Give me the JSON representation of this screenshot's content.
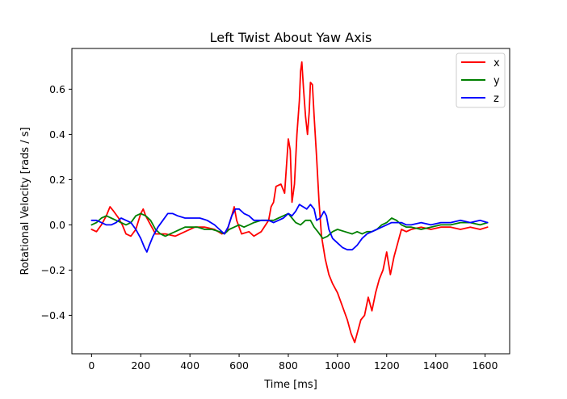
{
  "chart_data": {
    "type": "line",
    "title": "Left Twist About Yaw Axis",
    "xlabel": "Time [ms]",
    "ylabel": "Rotational Velocity [rads / s]",
    "xlim": [
      -80,
      1700
    ],
    "ylim": [
      -0.57,
      0.78
    ],
    "xticks": [
      0,
      200,
      400,
      600,
      800,
      1000,
      1200,
      1400,
      1600
    ],
    "yticks": [
      -0.4,
      -0.2,
      0.0,
      0.2,
      0.4,
      0.6
    ],
    "ytick_labels": [
      "−0.4",
      "−0.2",
      "0.0",
      "0.2",
      "0.4",
      "0.6"
    ],
    "grid": false,
    "legend_position": "top-right",
    "series": [
      {
        "name": "x",
        "color": "#ff0000",
        "points": [
          [
            0,
            -0.02
          ],
          [
            20,
            -0.03
          ],
          [
            40,
            0.0
          ],
          [
            60,
            0.04
          ],
          [
            75,
            0.08
          ],
          [
            90,
            0.06
          ],
          [
            110,
            0.03
          ],
          [
            125,
            0.0
          ],
          [
            140,
            -0.04
          ],
          [
            160,
            -0.05
          ],
          [
            180,
            -0.02
          ],
          [
            200,
            0.05
          ],
          [
            210,
            0.07
          ],
          [
            220,
            0.04
          ],
          [
            240,
            0.0
          ],
          [
            260,
            -0.04
          ],
          [
            300,
            -0.04
          ],
          [
            340,
            -0.05
          ],
          [
            380,
            -0.03
          ],
          [
            420,
            -0.01
          ],
          [
            460,
            -0.01
          ],
          [
            500,
            -0.02
          ],
          [
            530,
            -0.04
          ],
          [
            550,
            -0.03
          ],
          [
            570,
            0.04
          ],
          [
            580,
            0.08
          ],
          [
            590,
            0.02
          ],
          [
            610,
            -0.04
          ],
          [
            640,
            -0.03
          ],
          [
            660,
            -0.05
          ],
          [
            690,
            -0.03
          ],
          [
            720,
            0.02
          ],
          [
            730,
            0.08
          ],
          [
            740,
            0.1
          ],
          [
            750,
            0.17
          ],
          [
            770,
            0.18
          ],
          [
            785,
            0.14
          ],
          [
            795,
            0.3
          ],
          [
            800,
            0.38
          ],
          [
            808,
            0.33
          ],
          [
            815,
            0.1
          ],
          [
            825,
            0.18
          ],
          [
            835,
            0.4
          ],
          [
            845,
            0.55
          ],
          [
            850,
            0.68
          ],
          [
            855,
            0.72
          ],
          [
            862,
            0.6
          ],
          [
            870,
            0.48
          ],
          [
            878,
            0.4
          ],
          [
            885,
            0.5
          ],
          [
            890,
            0.63
          ],
          [
            898,
            0.62
          ],
          [
            905,
            0.48
          ],
          [
            915,
            0.3
          ],
          [
            925,
            0.1
          ],
          [
            935,
            -0.05
          ],
          [
            950,
            -0.15
          ],
          [
            965,
            -0.22
          ],
          [
            980,
            -0.26
          ],
          [
            1000,
            -0.3
          ],
          [
            1020,
            -0.36
          ],
          [
            1040,
            -0.42
          ],
          [
            1055,
            -0.48
          ],
          [
            1070,
            -0.52
          ],
          [
            1080,
            -0.48
          ],
          [
            1095,
            -0.42
          ],
          [
            1110,
            -0.4
          ],
          [
            1125,
            -0.32
          ],
          [
            1140,
            -0.38
          ],
          [
            1155,
            -0.3
          ],
          [
            1170,
            -0.24
          ],
          [
            1185,
            -0.2
          ],
          [
            1200,
            -0.12
          ],
          [
            1215,
            -0.22
          ],
          [
            1230,
            -0.14
          ],
          [
            1245,
            -0.08
          ],
          [
            1260,
            -0.02
          ],
          [
            1280,
            -0.03
          ],
          [
            1300,
            -0.02
          ],
          [
            1340,
            -0.01
          ],
          [
            1380,
            -0.02
          ],
          [
            1420,
            -0.01
          ],
          [
            1460,
            -0.01
          ],
          [
            1500,
            -0.02
          ],
          [
            1540,
            -0.01
          ],
          [
            1580,
            -0.02
          ],
          [
            1610,
            -0.01
          ]
        ]
      },
      {
        "name": "y",
        "color": "#008000",
        "points": [
          [
            0,
            0.0
          ],
          [
            20,
            0.01
          ],
          [
            40,
            0.03
          ],
          [
            60,
            0.04
          ],
          [
            80,
            0.03
          ],
          [
            100,
            0.02
          ],
          [
            120,
            0.01
          ],
          [
            140,
            0.0
          ],
          [
            160,
            0.01
          ],
          [
            180,
            0.04
          ],
          [
            200,
            0.05
          ],
          [
            220,
            0.04
          ],
          [
            240,
            0.02
          ],
          [
            260,
            -0.02
          ],
          [
            280,
            -0.04
          ],
          [
            300,
            -0.05
          ],
          [
            320,
            -0.04
          ],
          [
            340,
            -0.03
          ],
          [
            360,
            -0.02
          ],
          [
            380,
            -0.01
          ],
          [
            400,
            -0.01
          ],
          [
            430,
            -0.01
          ],
          [
            460,
            -0.02
          ],
          [
            490,
            -0.02
          ],
          [
            520,
            -0.03
          ],
          [
            540,
            -0.04
          ],
          [
            560,
            -0.02
          ],
          [
            580,
            -0.01
          ],
          [
            600,
            0.0
          ],
          [
            620,
            -0.01
          ],
          [
            640,
            0.0
          ],
          [
            660,
            0.01
          ],
          [
            690,
            0.02
          ],
          [
            720,
            0.02
          ],
          [
            740,
            0.02
          ],
          [
            760,
            0.03
          ],
          [
            780,
            0.04
          ],
          [
            800,
            0.05
          ],
          [
            815,
            0.03
          ],
          [
            830,
            0.01
          ],
          [
            850,
            0.0
          ],
          [
            870,
            0.02
          ],
          [
            890,
            0.02
          ],
          [
            905,
            -0.01
          ],
          [
            920,
            -0.03
          ],
          [
            940,
            -0.06
          ],
          [
            960,
            -0.05
          ],
          [
            980,
            -0.03
          ],
          [
            1000,
            -0.02
          ],
          [
            1030,
            -0.03
          ],
          [
            1060,
            -0.04
          ],
          [
            1080,
            -0.03
          ],
          [
            1100,
            -0.04
          ],
          [
            1120,
            -0.03
          ],
          [
            1140,
            -0.03
          ],
          [
            1160,
            -0.02
          ],
          [
            1180,
            0.0
          ],
          [
            1200,
            0.01
          ],
          [
            1220,
            0.03
          ],
          [
            1240,
            0.02
          ],
          [
            1260,
            0.0
          ],
          [
            1280,
            -0.01
          ],
          [
            1300,
            -0.01
          ],
          [
            1340,
            -0.02
          ],
          [
            1380,
            -0.01
          ],
          [
            1420,
            0.0
          ],
          [
            1460,
            0.0
          ],
          [
            1500,
            0.01
          ],
          [
            1540,
            0.01
          ],
          [
            1580,
            0.0
          ],
          [
            1610,
            0.01
          ]
        ]
      },
      {
        "name": "z",
        "color": "#0000ff",
        "points": [
          [
            0,
            0.02
          ],
          [
            20,
            0.02
          ],
          [
            40,
            0.01
          ],
          [
            60,
            0.0
          ],
          [
            80,
            0.0
          ],
          [
            100,
            0.01
          ],
          [
            120,
            0.03
          ],
          [
            140,
            0.02
          ],
          [
            160,
            0.01
          ],
          [
            180,
            -0.02
          ],
          [
            200,
            -0.06
          ],
          [
            215,
            -0.1
          ],
          [
            225,
            -0.12
          ],
          [
            235,
            -0.09
          ],
          [
            250,
            -0.05
          ],
          [
            270,
            -0.01
          ],
          [
            290,
            0.02
          ],
          [
            310,
            0.05
          ],
          [
            330,
            0.05
          ],
          [
            350,
            0.04
          ],
          [
            380,
            0.03
          ],
          [
            410,
            0.03
          ],
          [
            440,
            0.03
          ],
          [
            470,
            0.02
          ],
          [
            500,
            0.0
          ],
          [
            520,
            -0.02
          ],
          [
            540,
            -0.04
          ],
          [
            555,
            -0.01
          ],
          [
            570,
            0.04
          ],
          [
            585,
            0.07
          ],
          [
            600,
            0.07
          ],
          [
            620,
            0.05
          ],
          [
            640,
            0.04
          ],
          [
            660,
            0.02
          ],
          [
            690,
            0.02
          ],
          [
            720,
            0.02
          ],
          [
            740,
            0.01
          ],
          [
            760,
            0.02
          ],
          [
            780,
            0.03
          ],
          [
            800,
            0.05
          ],
          [
            815,
            0.04
          ],
          [
            830,
            0.06
          ],
          [
            845,
            0.09
          ],
          [
            860,
            0.08
          ],
          [
            875,
            0.07
          ],
          [
            890,
            0.09
          ],
          [
            905,
            0.07
          ],
          [
            915,
            0.02
          ],
          [
            930,
            0.03
          ],
          [
            945,
            0.06
          ],
          [
            955,
            0.04
          ],
          [
            965,
            -0.02
          ],
          [
            980,
            -0.06
          ],
          [
            1000,
            -0.08
          ],
          [
            1020,
            -0.1
          ],
          [
            1040,
            -0.11
          ],
          [
            1060,
            -0.11
          ],
          [
            1080,
            -0.09
          ],
          [
            1100,
            -0.06
          ],
          [
            1120,
            -0.04
          ],
          [
            1140,
            -0.03
          ],
          [
            1160,
            -0.02
          ],
          [
            1180,
            -0.01
          ],
          [
            1200,
            0.0
          ],
          [
            1220,
            0.01
          ],
          [
            1240,
            0.01
          ],
          [
            1260,
            0.01
          ],
          [
            1280,
            0.0
          ],
          [
            1300,
            0.0
          ],
          [
            1340,
            0.01
          ],
          [
            1380,
            0.0
          ],
          [
            1420,
            0.01
          ],
          [
            1460,
            0.01
          ],
          [
            1500,
            0.02
          ],
          [
            1540,
            0.01
          ],
          [
            1580,
            0.02
          ],
          [
            1610,
            0.01
          ]
        ]
      }
    ]
  }
}
